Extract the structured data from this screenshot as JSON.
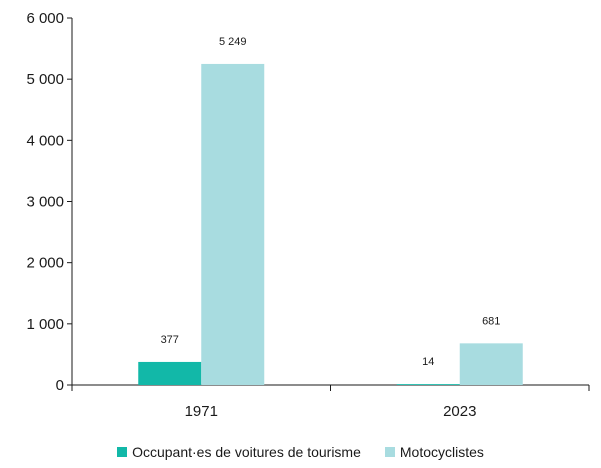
{
  "chart_data": {
    "type": "bar",
    "categories": [
      "1971",
      "2023"
    ],
    "series": [
      {
        "name": "Occupant·es de voitures de tourisme",
        "values": [
          377,
          14
        ],
        "labels": [
          "377",
          "14"
        ],
        "color": "#12b8a8"
      },
      {
        "name": "Motocyclistes",
        "values": [
          5249,
          681
        ],
        "labels": [
          "5 249",
          "681"
        ],
        "color": "#a8dce0"
      }
    ],
    "ylim": [
      0,
      6000
    ],
    "yticks": [
      0,
      1000,
      2000,
      3000,
      4000,
      5000,
      6000
    ],
    "ytick_labels": [
      "0",
      "1 000",
      "2 000",
      "3 000",
      "4 000",
      "5 000",
      "6 000"
    ],
    "title": "",
    "xlabel": "",
    "ylabel": "",
    "grid": false,
    "legend_position": "bottom"
  }
}
